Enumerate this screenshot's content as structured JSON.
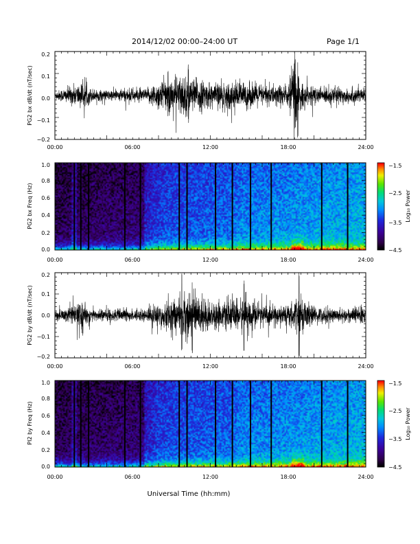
{
  "header": {
    "title": "2014/12/02  00:00–24:00 UT",
    "page": "Page 1/1"
  },
  "xlabel": "Universal Time (hh:mm)",
  "x_ticks": [
    "00:00",
    "06:00",
    "12:00",
    "18:00",
    "24:00"
  ],
  "chart_data": [
    {
      "type": "line",
      "ylabel": "PG2 bx dB/dt (nT/sec)",
      "xlim": [
        0,
        24
      ],
      "ylim": [
        -0.2,
        0.2
      ],
      "y_ticks": [
        "0.2",
        "0.1",
        "0.0",
        "−0.1",
        "−0.2"
      ],
      "y_tick_values": [
        0.2,
        0.1,
        0,
        -0.1,
        -0.2
      ],
      "envelope": {
        "x": [
          0,
          1,
          2,
          3,
          4,
          5,
          6,
          7,
          8,
          9,
          10,
          11,
          12,
          13,
          14,
          15,
          16,
          17,
          18,
          18.5,
          19,
          20,
          21,
          22,
          23,
          24
        ],
        "amp": [
          0.02,
          0.04,
          0.06,
          0.03,
          0.025,
          0.03,
          0.035,
          0.03,
          0.07,
          0.09,
          0.1,
          0.08,
          0.06,
          0.06,
          0.07,
          0.06,
          0.05,
          0.05,
          0.06,
          0.18,
          0.06,
          0.04,
          0.04,
          0.04,
          0.04,
          0.03
        ]
      }
    },
    {
      "type": "heatmap",
      "ylabel": "PG2 bx Freq (Hz)",
      "xlim": [
        0,
        24
      ],
      "ylim": [
        0,
        1
      ],
      "y_ticks": [
        "1.0",
        "0.8",
        "0.6",
        "0.4",
        "0.2",
        "0.0"
      ],
      "y_tick_values": [
        1,
        0.8,
        0.6,
        0.4,
        0.2,
        0
      ],
      "gap_lines_hours": [
        1.5,
        2.0,
        2.6,
        5.4,
        6.6,
        9.6,
        10.2,
        12.4,
        13.7,
        15.1,
        16.7,
        20.6,
        22.6
      ],
      "colorbar": {
        "label": "Log₁₀ Power",
        "ticks": [
          "−1.5",
          "−2.5",
          "−3.5",
          "−4.5"
        ],
        "tick_values": [
          -1.5,
          -2.5,
          -3.5,
          -4.5
        ],
        "range": [
          -4.5,
          -1.5
        ]
      }
    },
    {
      "type": "line",
      "ylabel": "PG2 by dB/dt (nT/sec)",
      "xlim": [
        0,
        24
      ],
      "ylim": [
        -0.2,
        0.2
      ],
      "y_ticks": [
        "0.2",
        "0.1",
        "0.0",
        "−0.1",
        "−0.2"
      ],
      "y_tick_values": [
        0.2,
        0.1,
        0,
        -0.1,
        -0.2
      ],
      "envelope": {
        "x": [
          0,
          1,
          2,
          3,
          4,
          5,
          6,
          7,
          8,
          9,
          10,
          11,
          12,
          13,
          14,
          15,
          16,
          17,
          18,
          19,
          20,
          21,
          22,
          23,
          24
        ],
        "amp": [
          0.02,
          0.04,
          0.06,
          0.03,
          0.03,
          0.03,
          0.03,
          0.03,
          0.06,
          0.08,
          0.12,
          0.1,
          0.07,
          0.06,
          0.08,
          0.09,
          0.05,
          0.05,
          0.05,
          0.09,
          0.04,
          0.04,
          0.03,
          0.04,
          0.05
        ]
      }
    },
    {
      "type": "heatmap",
      "ylabel": "PI2 by Freq (Hz)",
      "xlim": [
        0,
        24
      ],
      "ylim": [
        0,
        1
      ],
      "y_ticks": [
        "1.0",
        "0.8",
        "0.6",
        "0.4",
        "0.2",
        "0.0"
      ],
      "y_tick_values": [
        1,
        0.8,
        0.6,
        0.4,
        0.2,
        0
      ],
      "gap_lines_hours": [
        1.5,
        2.0,
        2.6,
        5.4,
        6.6,
        9.6,
        10.2,
        12.4,
        13.7,
        15.1,
        16.7,
        20.6,
        22.6
      ],
      "colorbar": {
        "label": "Log₁₀ Power",
        "ticks": [
          "−1.5",
          "−2.5",
          "−3.5",
          "−4.5"
        ],
        "tick_values": [
          -1.5,
          -2.5,
          -3.5,
          -4.5
        ],
        "range": [
          -4.5,
          -1.5
        ]
      }
    }
  ]
}
